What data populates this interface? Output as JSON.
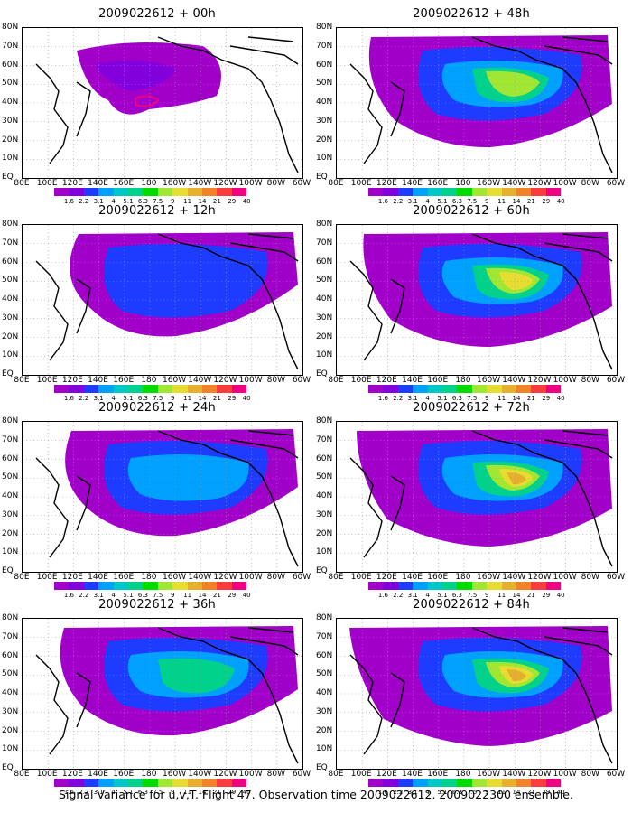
{
  "footer": "Signal Variance for u,v,T. Flight 47. Observation time 2009022612. 2009022300 ensemble.",
  "lat_labels": [
    "80N",
    "70N",
    "60N",
    "50N",
    "40N",
    "30N",
    "20N",
    "10N",
    "EQ"
  ],
  "lon_labels": [
    "80E",
    "100E",
    "120E",
    "140E",
    "160E",
    "180",
    "160W",
    "140W",
    "120W",
    "100W",
    "80W",
    "60W"
  ],
  "colorbar": {
    "labels": [
      "1.6",
      "2.2",
      "3.1",
      "4",
      "5.1",
      "6.3",
      "7.5",
      "9",
      "11",
      "14",
      "21",
      "29",
      "40"
    ],
    "colors": [
      "#a000c8",
      "#8200dc",
      "#1e3cff",
      "#00a0ff",
      "#00c8c8",
      "#00d28c",
      "#00dc00",
      "#a0e632",
      "#e6dc32",
      "#e6af2d",
      "#f08228",
      "#fa3c3c",
      "#f00082"
    ]
  },
  "panels": [
    {
      "id": "p00",
      "title": "2009022612 + 00h",
      "lead_hours": 0
    },
    {
      "id": "p48",
      "title": "2009022612 + 48h",
      "lead_hours": 48
    },
    {
      "id": "p12",
      "title": "2009022612 + 12h",
      "lead_hours": 12
    },
    {
      "id": "p60",
      "title": "2009022612 + 60h",
      "lead_hours": 60
    },
    {
      "id": "p24",
      "title": "2009022612 + 24h",
      "lead_hours": 24
    },
    {
      "id": "p72",
      "title": "2009022612 + 72h",
      "lead_hours": 72
    },
    {
      "id": "p36",
      "title": "2009022612 + 36h",
      "lead_hours": 36
    },
    {
      "id": "p84",
      "title": "2009022612 + 84h",
      "lead_hours": 84
    }
  ]
}
